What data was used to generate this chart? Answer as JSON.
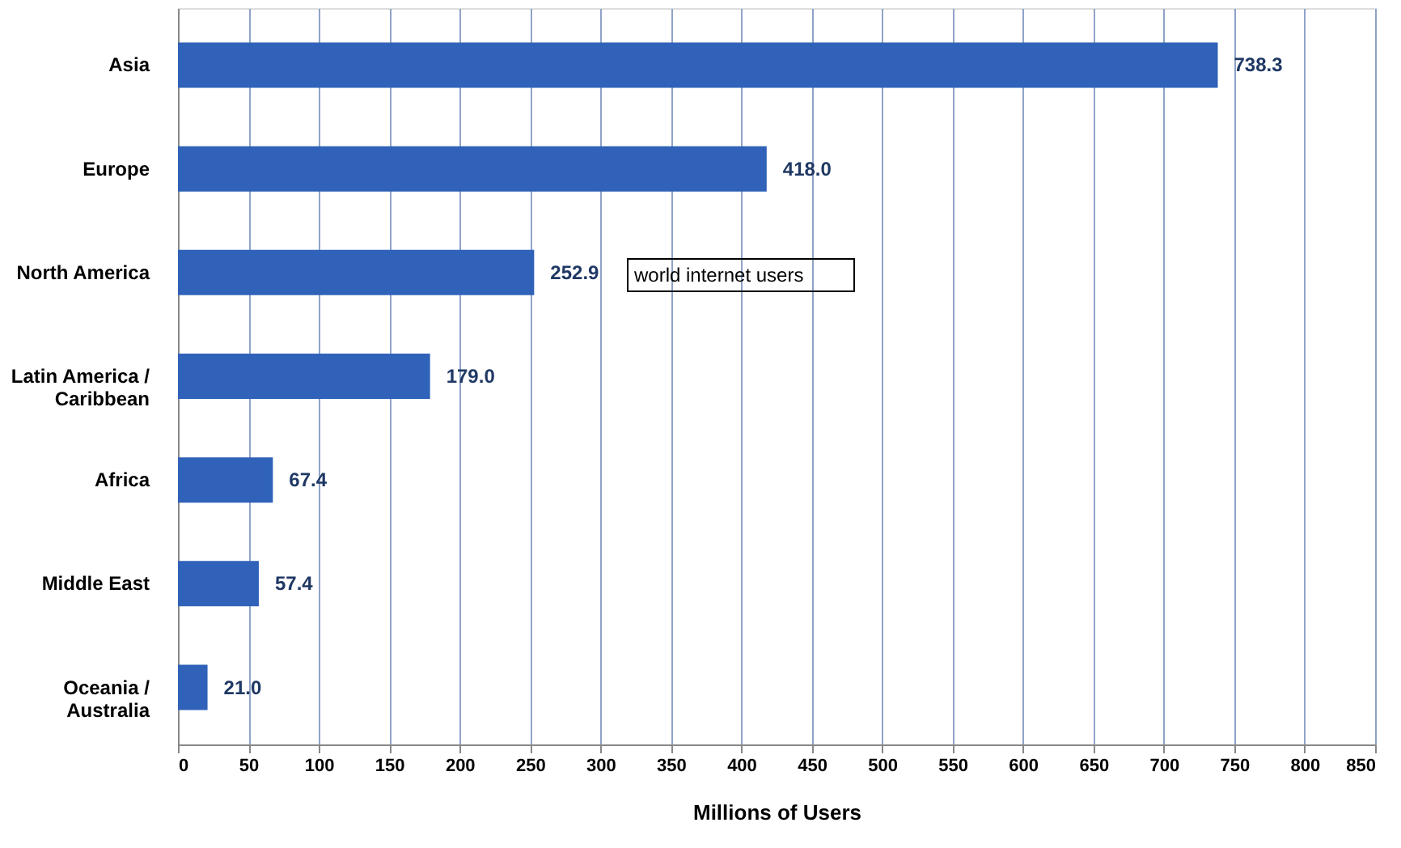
{
  "chart_data": {
    "type": "bar",
    "orientation": "horizontal",
    "xlabel": "Millions of Users",
    "categories": [
      "Asia",
      "Europe",
      "North America",
      "Latin America / Caribbean",
      "Africa",
      "Middle East",
      "Oceania  / Australia"
    ],
    "values": [
      738.3,
      418.0,
      252.9,
      179.0,
      67.4,
      57.4,
      21.0
    ],
    "value_labels": [
      "738.3",
      "418.0",
      "252.9",
      "179.0",
      "67.4",
      "57.4",
      "21.0"
    ],
    "color": "#2f62b8",
    "xlim": [
      0,
      850
    ],
    "xticks": [
      0,
      50,
      100,
      150,
      200,
      250,
      300,
      350,
      400,
      450,
      500,
      550,
      600,
      650,
      700,
      750,
      800,
      850
    ],
    "grid": "x",
    "annotations": [
      "world internet users"
    ]
  }
}
